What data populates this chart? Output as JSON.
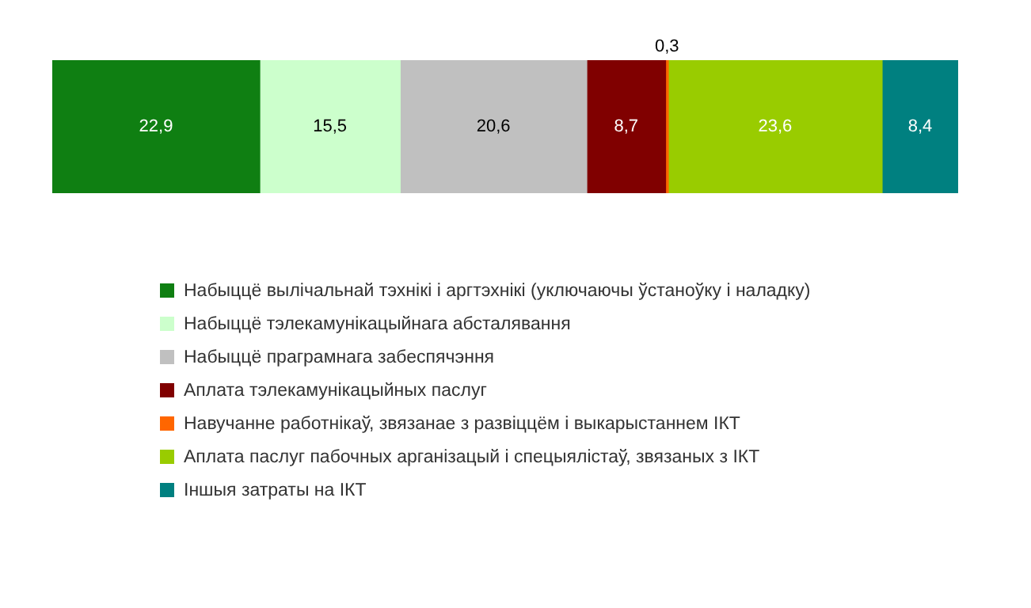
{
  "chart_data": {
    "type": "bar",
    "orientation": "horizontal",
    "stacked": true,
    "categories": [
      null
    ],
    "legend": "bottom",
    "series": [
      {
        "name": "Набыццё вылічальнай тэхнікі і аргтэхнікі (уключаючы ўстаноўку і наладку)",
        "color": "#0f7f12",
        "values": [
          22.9
        ],
        "value_labels": [
          "22,9"
        ]
      },
      {
        "name": "Набыццё тэлекамунікацыйнага абсталявання",
        "color": "#ccffcc",
        "values": [
          15.5
        ],
        "value_labels": [
          "15,5"
        ]
      },
      {
        "name": "Набыццё праграмнага забеспячэння",
        "color": "#c0c0c0",
        "values": [
          20.6
        ],
        "value_labels": [
          "20,6"
        ]
      },
      {
        "name": "Аплата тэлекамунікацыйных паслуг",
        "color": "#800000",
        "values": [
          8.7
        ],
        "value_labels": [
          "8,7"
        ]
      },
      {
        "name": "Навучанне работнікаў, звязанае з развіццём і выкарыстаннем ІКТ",
        "color": "#ff6600",
        "values": [
          0.3
        ],
        "value_labels": [
          "0,3"
        ]
      },
      {
        "name": "Аплата паслуг пабочных арганізацый і спецыялістаў, звязаных з ІКТ",
        "color": "#99cc00",
        "values": [
          23.6
        ],
        "value_labels": [
          "23,6"
        ]
      },
      {
        "name": "Іншыя затраты на ІКТ",
        "color": "#008080",
        "values": [
          8.4
        ],
        "value_labels": [
          "8,4"
        ]
      }
    ]
  }
}
